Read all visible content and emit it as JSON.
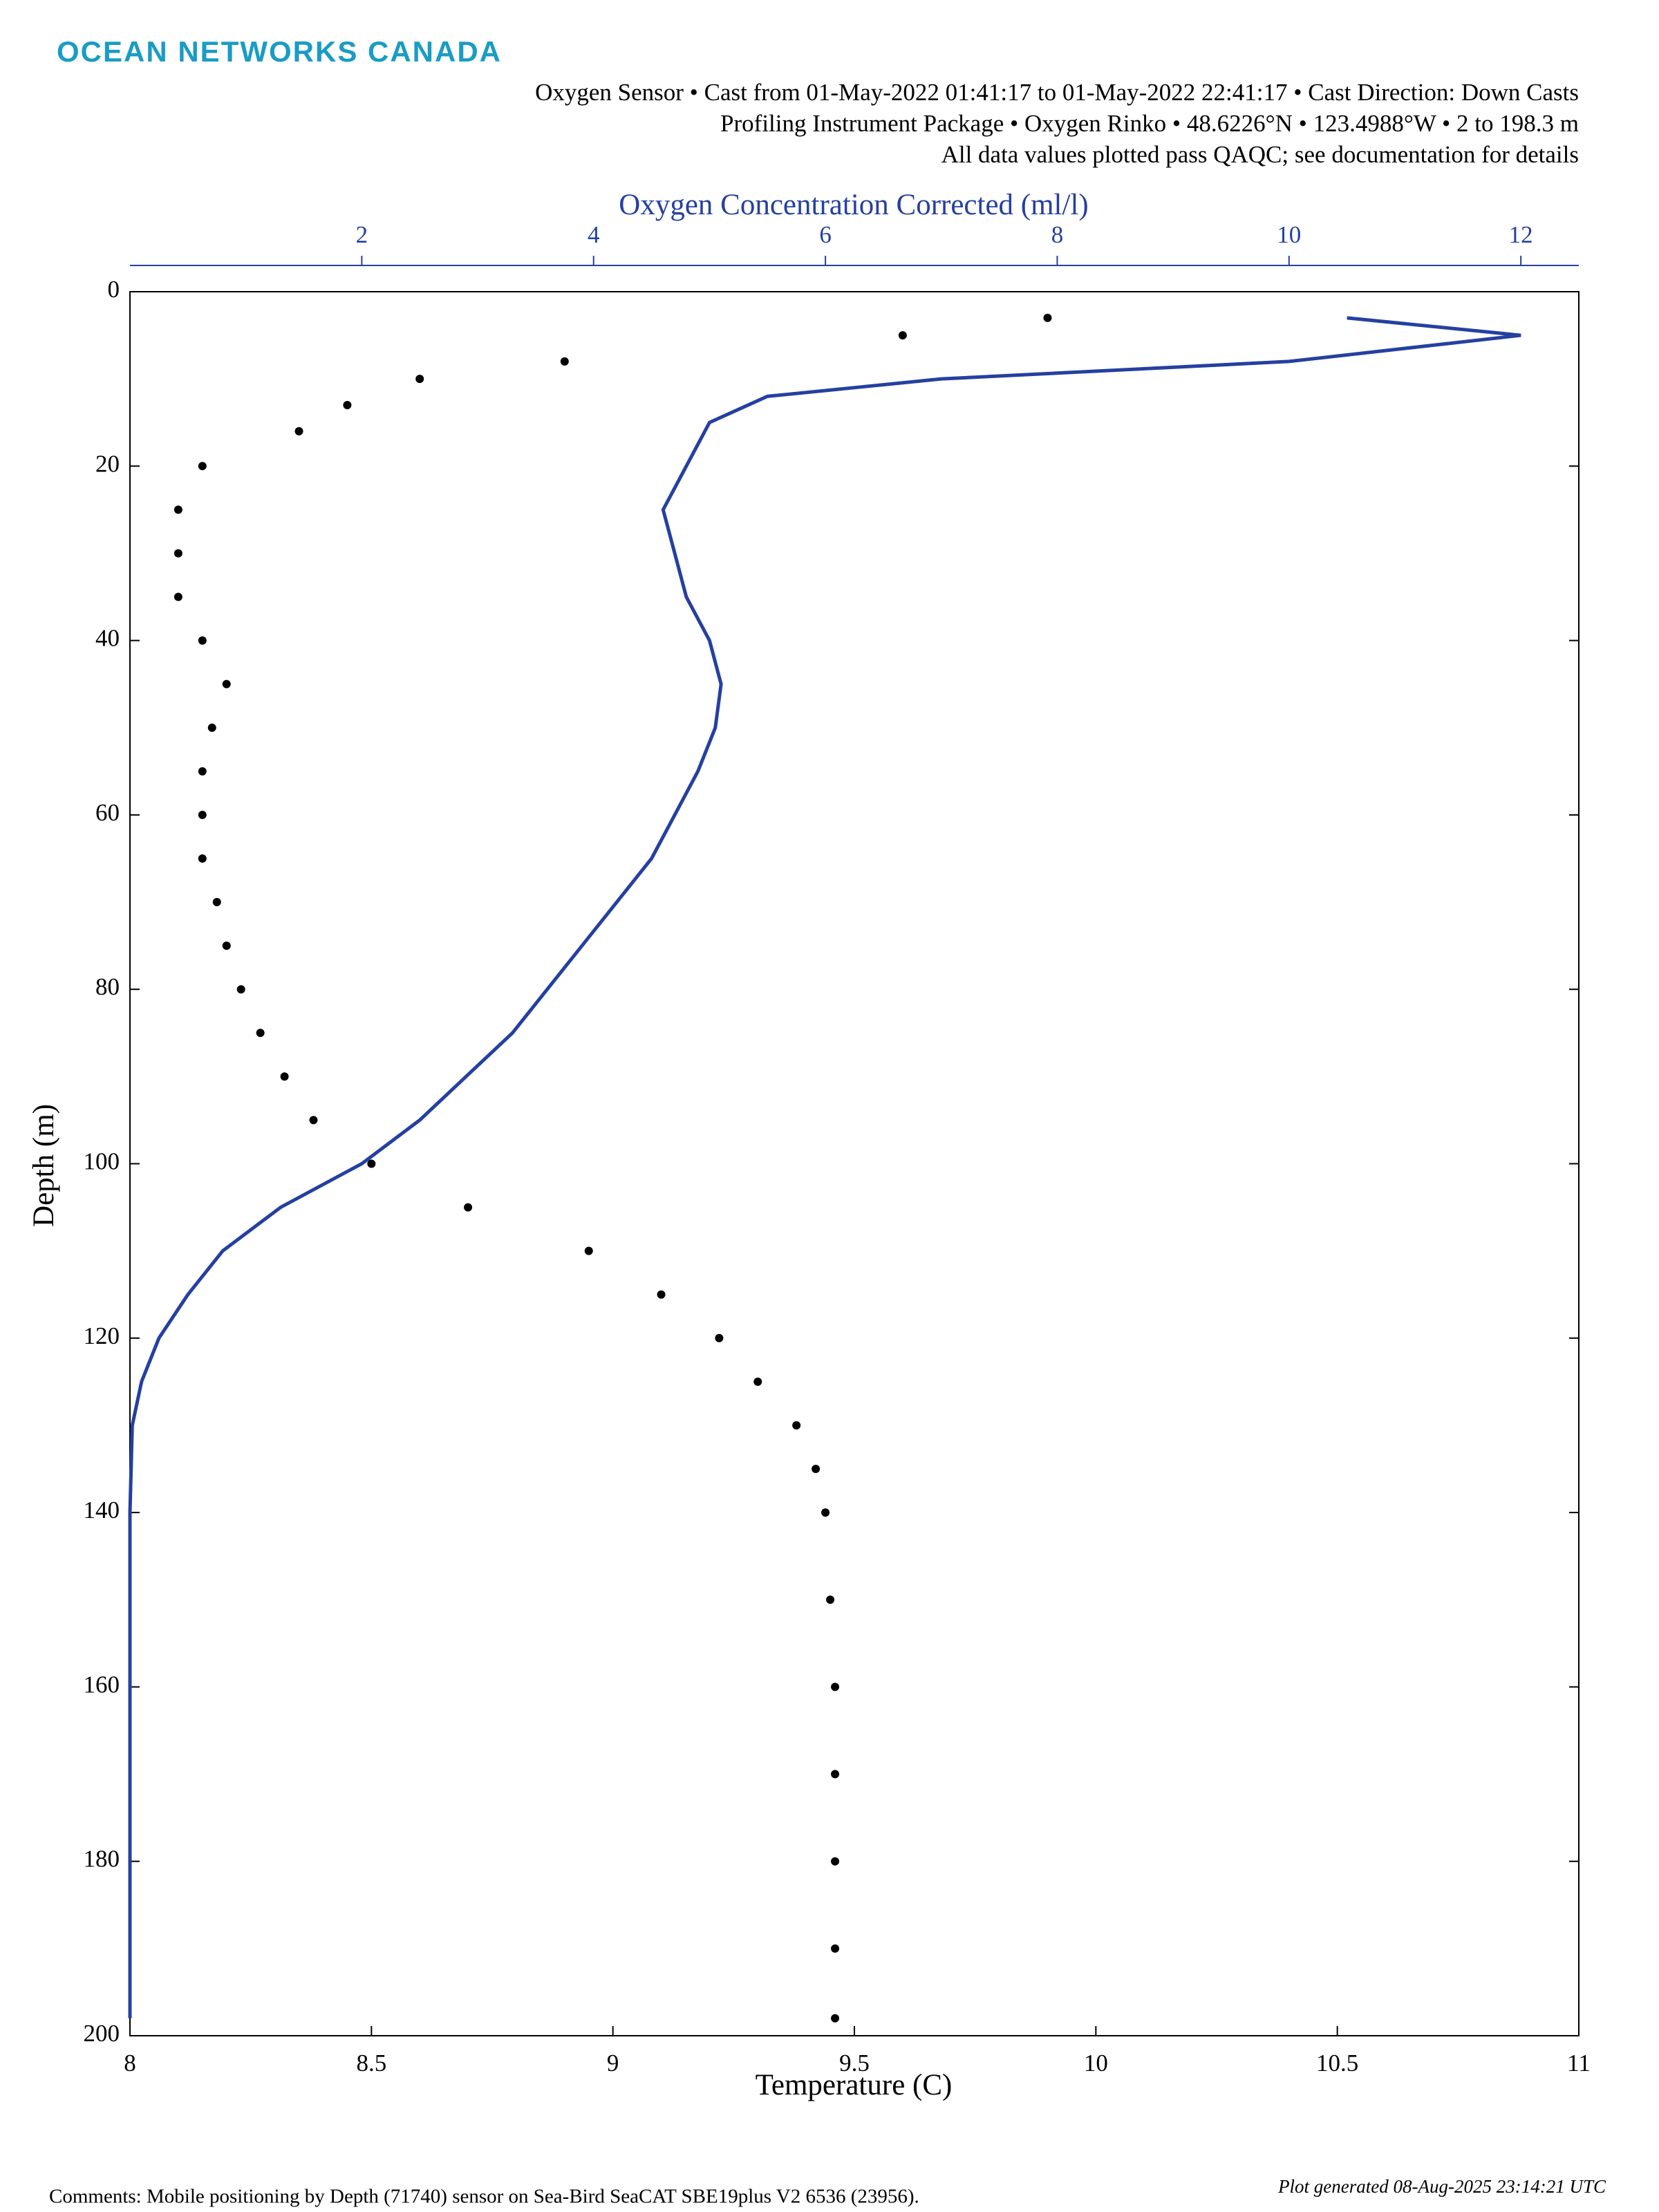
{
  "header": {
    "logo": "OCEAN NETWORKS CANADA",
    "subtitle_lines": [
      "Oxygen Sensor • Cast from 01-May-2022 01:41:17 to 01-May-2022 22:41:17 • Cast Direction: Down Casts",
      "Profiling Instrument Package • Oxygen Rinko • 48.6226°N • 123.4988°W • 2 to 198.3 m",
      "All data values plotted pass QAQC; see documentation for details"
    ]
  },
  "chart_data": {
    "type": "profile",
    "xlabel": "Temperature (C)",
    "x2label": "Oxygen Concentration Corrected (ml/l)",
    "ylabel": "Depth (m)",
    "xlim": [
      8,
      11
    ],
    "xticks": [
      8,
      8.5,
      9,
      9.5,
      10,
      10.5,
      11
    ],
    "x2lim": [
      0,
      12.5
    ],
    "x2ticks": [
      2,
      4,
      6,
      8,
      10,
      12
    ],
    "ylim": [
      0,
      200
    ],
    "yticks": [
      0,
      20,
      40,
      60,
      80,
      100,
      120,
      140,
      160,
      180,
      200
    ],
    "y_reversed": true,
    "x2color": "#2540a0",
    "series": [
      {
        "style": "points",
        "color": "#000000",
        "axis": "x",
        "y": [
          3,
          5,
          8,
          10,
          13,
          16,
          20,
          25,
          30,
          35,
          40,
          45,
          50,
          55,
          60,
          65,
          70,
          75,
          80,
          85,
          90,
          95,
          100,
          105,
          110,
          115,
          120,
          125,
          130,
          135,
          140,
          150,
          160,
          170,
          180,
          190,
          198
        ],
        "x": [
          9.9,
          9.6,
          8.9,
          8.6,
          8.45,
          8.35,
          8.15,
          8.1,
          8.1,
          8.1,
          8.15,
          8.2,
          8.17,
          8.15,
          8.15,
          8.15,
          8.18,
          8.2,
          8.23,
          8.27,
          8.32,
          8.38,
          8.5,
          8.7,
          8.95,
          9.1,
          9.22,
          9.3,
          9.38,
          9.42,
          9.44,
          9.45,
          9.46,
          9.46,
          9.46,
          9.46,
          9.46
        ]
      },
      {
        "style": "line",
        "color": "#2540a0",
        "axis": "x2",
        "y": [
          3,
          5,
          8,
          10,
          12,
          15,
          20,
          25,
          30,
          35,
          40,
          45,
          50,
          55,
          60,
          65,
          70,
          75,
          80,
          85,
          90,
          95,
          100,
          105,
          110,
          115,
          120,
          125,
          130,
          140,
          160,
          180,
          198
        ],
        "x": [
          10.5,
          12,
          10,
          7,
          5.5,
          5,
          4.8,
          4.6,
          4.7,
          4.8,
          5,
          5.1,
          5.05,
          4.9,
          4.7,
          4.5,
          4.2,
          3.9,
          3.6,
          3.3,
          2.9,
          2.5,
          2,
          1.3,
          0.8,
          0.5,
          0.25,
          0.1,
          0.02,
          0,
          0,
          0,
          0
        ]
      }
    ]
  },
  "footer": {
    "comments": "Comments: Mobile positioning by Depth (71740) sensor on Sea-Bird SeaCAT SBE19plus V2 6536 (23956).",
    "generated": "Plot generated 08-Aug-2025 23:14:21 UTC"
  }
}
